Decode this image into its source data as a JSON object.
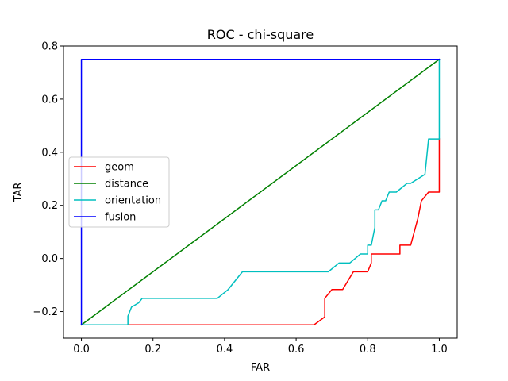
{
  "chart_data": {
    "type": "line",
    "title": "ROC - chi-square",
    "xlabel": "FAR",
    "ylabel": "TAR",
    "xlim": [
      -0.05,
      1.05
    ],
    "ylim": [
      -0.3,
      0.8
    ],
    "xticks": [
      0.0,
      0.2,
      0.4,
      0.6,
      0.8,
      1.0
    ],
    "xtick_labels": [
      "0.0",
      "0.2",
      "0.4",
      "0.6",
      "0.8",
      "1.0"
    ],
    "yticks": [
      -0.2,
      0.0,
      0.2,
      0.4,
      0.6,
      0.8
    ],
    "ytick_labels": [
      "−0.2",
      "0.0",
      "0.2",
      "0.4",
      "0.6",
      "0.8"
    ],
    "grid": false,
    "legend_position": "center-left",
    "series": [
      {
        "name": "geom",
        "color": "#ff0000",
        "x": [
          0.0,
          0.13,
          0.65,
          0.68,
          0.68,
          0.7,
          0.73,
          0.76,
          0.8,
          0.81,
          0.81,
          0.89,
          0.89,
          0.92,
          0.94,
          0.95,
          0.97,
          1.0,
          1.0
        ],
        "y": [
          -0.25,
          -0.25,
          -0.25,
          -0.22,
          -0.15,
          -0.117,
          -0.117,
          -0.05,
          -0.05,
          -0.017,
          0.017,
          0.017,
          0.05,
          0.05,
          0.15,
          0.217,
          0.25,
          0.25,
          0.45
        ]
      },
      {
        "name": "distance",
        "color": "#008000",
        "x": [
          0.0,
          1.0
        ],
        "y": [
          -0.25,
          0.75
        ]
      },
      {
        "name": "orientation",
        "color": "#00bfbf",
        "x": [
          0.0,
          0.13,
          0.13,
          0.14,
          0.16,
          0.17,
          0.38,
          0.41,
          0.45,
          0.69,
          0.72,
          0.75,
          0.78,
          0.8,
          0.8,
          0.81,
          0.82,
          0.82,
          0.83,
          0.84,
          0.85,
          0.86,
          0.86,
          0.88,
          0.91,
          0.92,
          0.96,
          0.97,
          0.97,
          0.99,
          1.0,
          1.0
        ],
        "y": [
          -0.25,
          -0.25,
          -0.217,
          -0.183,
          -0.167,
          -0.15,
          -0.15,
          -0.117,
          -0.05,
          -0.05,
          -0.017,
          -0.017,
          0.017,
          0.017,
          0.05,
          0.05,
          0.117,
          0.183,
          0.183,
          0.217,
          0.217,
          0.25,
          0.25,
          0.25,
          0.283,
          0.283,
          0.317,
          0.45,
          0.45,
          0.45,
          0.45,
          0.75
        ]
      },
      {
        "name": "fusion",
        "color": "#0000ff",
        "x": [
          0.0,
          0.0,
          1.0
        ],
        "y": [
          -0.25,
          0.75,
          0.75
        ]
      }
    ]
  }
}
